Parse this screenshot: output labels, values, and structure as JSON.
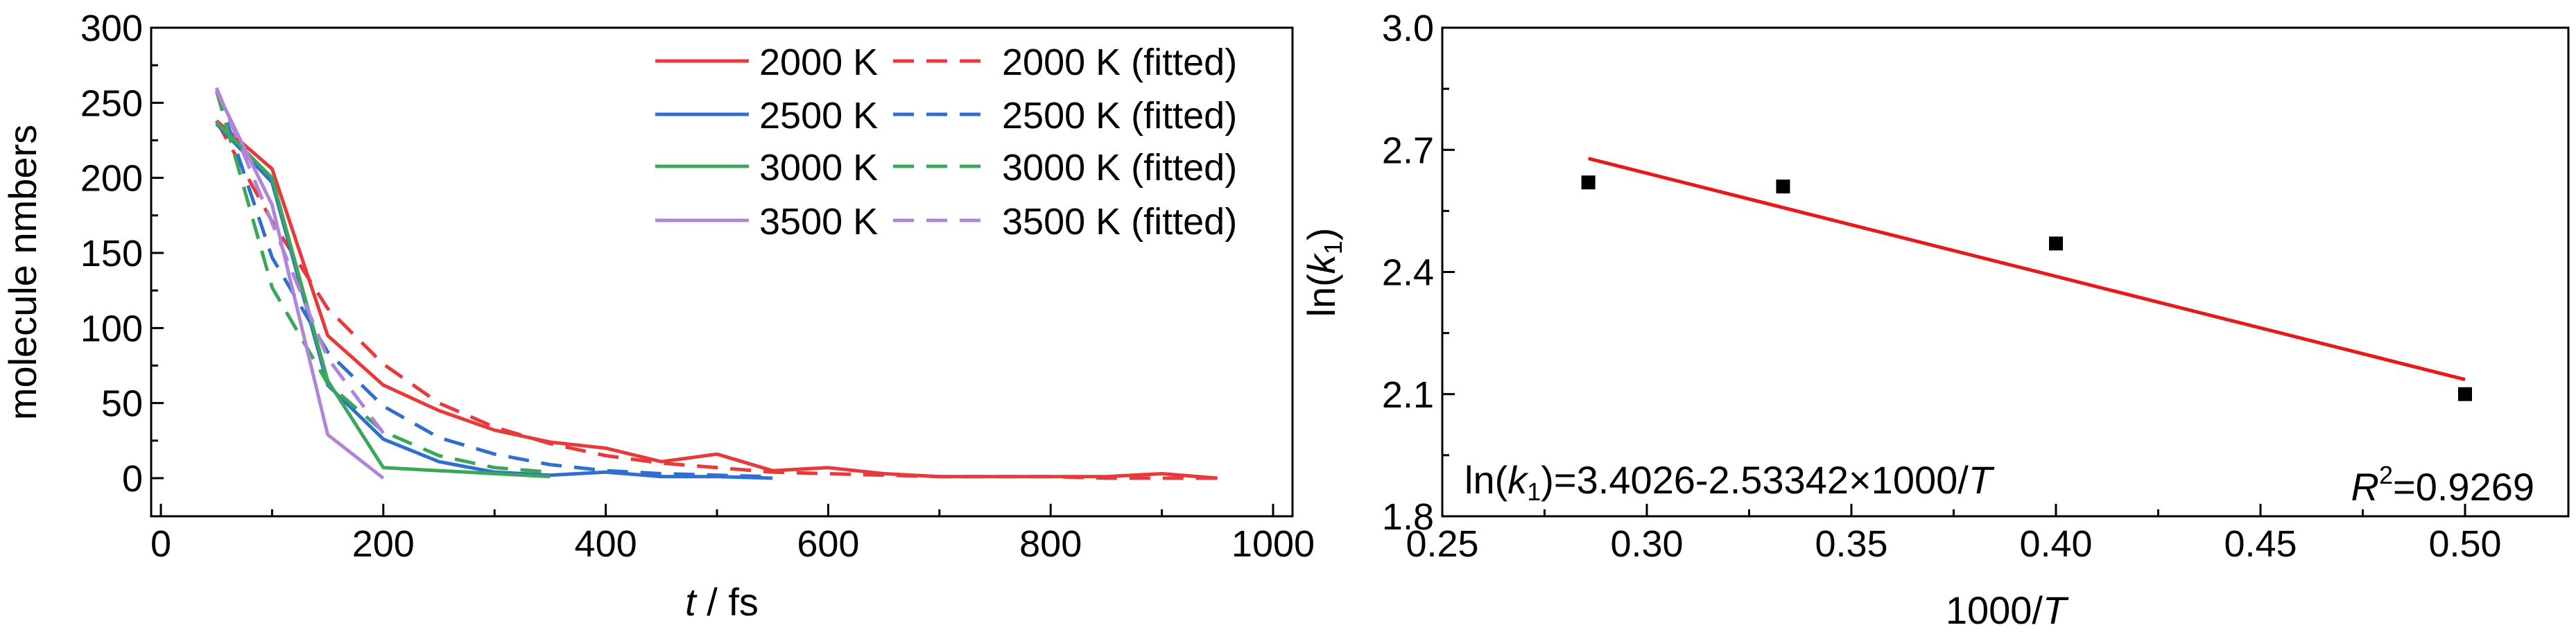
{
  "chart_data": [
    {
      "type": "line",
      "ylabel": "molecule nmbers",
      "xlabel_italic": "t",
      "xlabel_rest": " / fs",
      "xlim": [
        0,
        1000
      ],
      "ylim": [
        -20,
        300
      ],
      "xticks": [
        "0",
        "200",
        "400",
        "600",
        "800",
        "1000"
      ],
      "yticks": [
        "0",
        "50",
        "100",
        "150",
        "200",
        "250",
        "300"
      ],
      "legend_position": "top-right",
      "colors": {
        "2000 K": "#e8393b",
        "2500 K": "#2f6fd0",
        "3000 K": "#3aa85a",
        "3500 K": "#b184d8"
      },
      "series": [
        {
          "name": "2000 K",
          "style": "solid",
          "color": "#e8393b",
          "x": [
            50,
            100,
            150,
            200,
            250,
            300,
            350,
            400,
            450,
            500,
            550,
            600,
            650,
            700,
            750,
            800,
            850,
            900,
            950
          ],
          "y": [
            238,
            206,
            95,
            62,
            45,
            32,
            24,
            20,
            11,
            16,
            5,
            7,
            3,
            1,
            1,
            1,
            1,
            3,
            0
          ]
        },
        {
          "name": "2000 K (fitted)",
          "style": "dashed",
          "color": "#e8393b",
          "x": [
            50,
            100,
            150,
            200,
            250,
            300,
            350,
            400,
            450,
            500,
            550,
            600,
            650,
            700,
            750,
            800,
            850,
            900,
            950
          ],
          "y": [
            238,
            171,
            113,
            76,
            50,
            34,
            23,
            15,
            10,
            7,
            4,
            3,
            2,
            1,
            1,
            1,
            0,
            0,
            0
          ]
        },
        {
          "name": "2500 K",
          "style": "solid",
          "color": "#2f6fd0",
          "x": [
            50,
            100,
            150,
            200,
            250,
            300,
            350,
            400,
            450,
            500,
            550
          ],
          "y": [
            236,
            197,
            62,
            26,
            11,
            4,
            2,
            4,
            1,
            1,
            0
          ]
        },
        {
          "name": "2500 K (fitted)",
          "style": "dashed",
          "color": "#2f6fd0",
          "x": [
            50,
            100,
            150,
            200,
            250,
            300,
            350,
            400,
            450,
            500,
            550
          ],
          "y": [
            258,
            147,
            84,
            48,
            27,
            16,
            9,
            5,
            3,
            2,
            1
          ]
        },
        {
          "name": "3000 K",
          "style": "solid",
          "color": "#3aa85a",
          "x": [
            50,
            100,
            150,
            200,
            250,
            300,
            350
          ],
          "y": [
            237,
            200,
            65,
            7,
            5,
            3,
            1
          ]
        },
        {
          "name": "3000 K (fitted)",
          "style": "dashed",
          "color": "#3aa85a",
          "x": [
            50,
            100,
            150,
            200,
            250,
            300,
            350
          ],
          "y": [
            258,
            127,
            63,
            31,
            15,
            7,
            4
          ]
        },
        {
          "name": "3500 K",
          "style": "solid",
          "color": "#b184d8",
          "x": [
            50,
            100,
            150,
            200
          ],
          "y": [
            258,
            182,
            29,
            0
          ]
        },
        {
          "name": "3500 K (fitted)",
          "style": "dashed",
          "color": "#b184d8",
          "x": [
            50,
            100,
            150,
            200
          ],
          "y": [
            260,
            170,
            80,
            30
          ]
        }
      ]
    },
    {
      "type": "scatter",
      "xlabel_main": "1000/",
      "xlabel_italic": "T",
      "xlim": [
        0.25,
        0.52
      ],
      "ylim": [
        1.8,
        3.0
      ],
      "xticks": [
        "0.25",
        "0.30",
        "0.35",
        "0.40",
        "0.45",
        "0.50"
      ],
      "yticks": [
        "1.8",
        "2.1",
        "2.4",
        "2.7",
        "3.0"
      ],
      "points": {
        "x": [
          0.2857,
          0.3333,
          0.4,
          0.5
        ],
        "y": [
          2.62,
          2.61,
          2.47,
          2.1
        ]
      },
      "fit": {
        "intercept": 3.4026,
        "slope": -2.53342,
        "x_range": [
          0.2857,
          0.5
        ],
        "color": "#e8191b"
      },
      "equation": "=3.4026-2.53342×1000/",
      "r2_value": "=0.9269"
    }
  ]
}
